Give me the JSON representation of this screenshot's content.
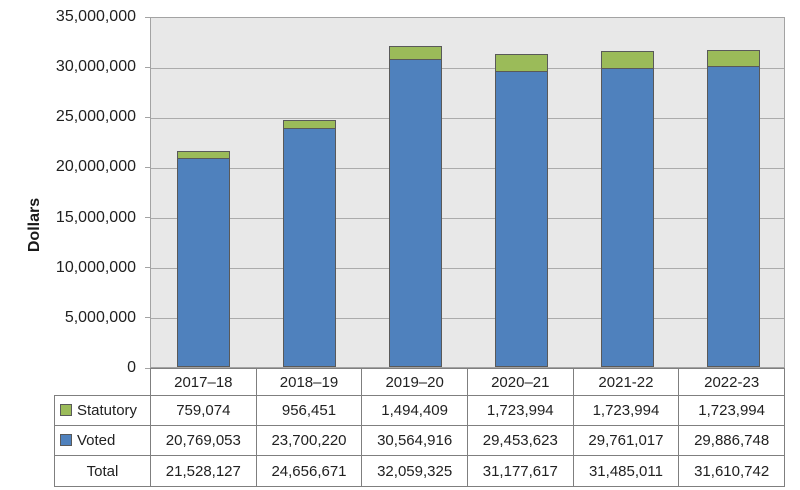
{
  "chart_data": {
    "type": "bar",
    "stacked": true,
    "title": "",
    "xlabel": "",
    "ylabel": "Dollars",
    "ylim": [
      0,
      35000000
    ],
    "ytick_step": 5000000,
    "ytick_labels": [
      "0",
      "5,000,000",
      "10,000,000",
      "15,000,000",
      "20,000,000",
      "25,000,000",
      "30,000,000",
      "35,000,000"
    ],
    "grid": "horizontal",
    "legend_position": "table-left",
    "categories": [
      "2017–18",
      "2018–19",
      "2019–20",
      "2020–21",
      "2021-22",
      "2022-23"
    ],
    "series": [
      {
        "name": "Voted",
        "color": "#4f81bd",
        "border_color": "#595959",
        "values": [
          20769053,
          23700220,
          30564916,
          29453623,
          29761017,
          29886748
        ]
      },
      {
        "name": "Statutory",
        "color": "#9bbb59",
        "border_color": "#595959",
        "values": [
          759074,
          956451,
          1494409,
          1723994,
          1723994,
          1723994
        ]
      }
    ],
    "totals": [
      21528127,
      24656671,
      32059325,
      31177617,
      31485011,
      31610742
    ]
  },
  "table": {
    "rows": [
      {
        "label": "Statutory",
        "swatch_color": "#9bbb59",
        "values": [
          "759,074",
          "956,451",
          "1,494,409",
          "1,723,994",
          "1,723,994",
          "1,723,994"
        ]
      },
      {
        "label": "Voted",
        "swatch_color": "#4f81bd",
        "values": [
          "20,769,053",
          "23,700,220",
          "30,564,916",
          "29,453,623",
          "29,761,017",
          "29,886,748"
        ]
      },
      {
        "label": "Total",
        "swatch_color": null,
        "values": [
          "21,528,127",
          "24,656,671",
          "32,059,325",
          "31,177,617",
          "31,485,011",
          "31,610,742"
        ]
      }
    ]
  },
  "colors": {
    "voted_fill": "#4f81bd",
    "statutory_fill": "#9bbb59",
    "bar_border": "#595959",
    "plot_background": "#e8e8e8",
    "gridline": "#ababab",
    "table_border": "#7f7f7f",
    "text": "#212121"
  }
}
